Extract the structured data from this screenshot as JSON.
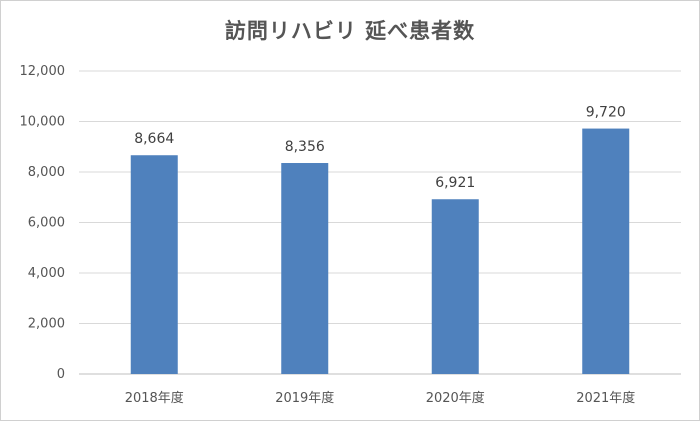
{
  "chart_data": {
    "type": "bar",
    "title": "訪問リハビリ  延べ患者数",
    "xlabel": "",
    "ylabel": "",
    "categories": [
      "2018年度",
      "2019年度",
      "2020年度",
      "2021年度"
    ],
    "values": [
      8664,
      8356,
      6921,
      9720
    ],
    "data_labels": [
      "8,664",
      "8,356",
      "6,921",
      "9,720"
    ],
    "yticks": [
      0,
      2000,
      4000,
      6000,
      8000,
      10000,
      12000
    ],
    "ytick_labels": [
      "0",
      "2,000",
      "4,000",
      "6,000",
      "8,000",
      "10,000",
      "12,000"
    ],
    "ylim": [
      0,
      12000
    ],
    "grid": true,
    "legend": "none",
    "colors": {
      "bar": "#4f81bd",
      "grid": "#d9d9d9",
      "axis": "#bfbfbf",
      "text": "#555555"
    }
  }
}
